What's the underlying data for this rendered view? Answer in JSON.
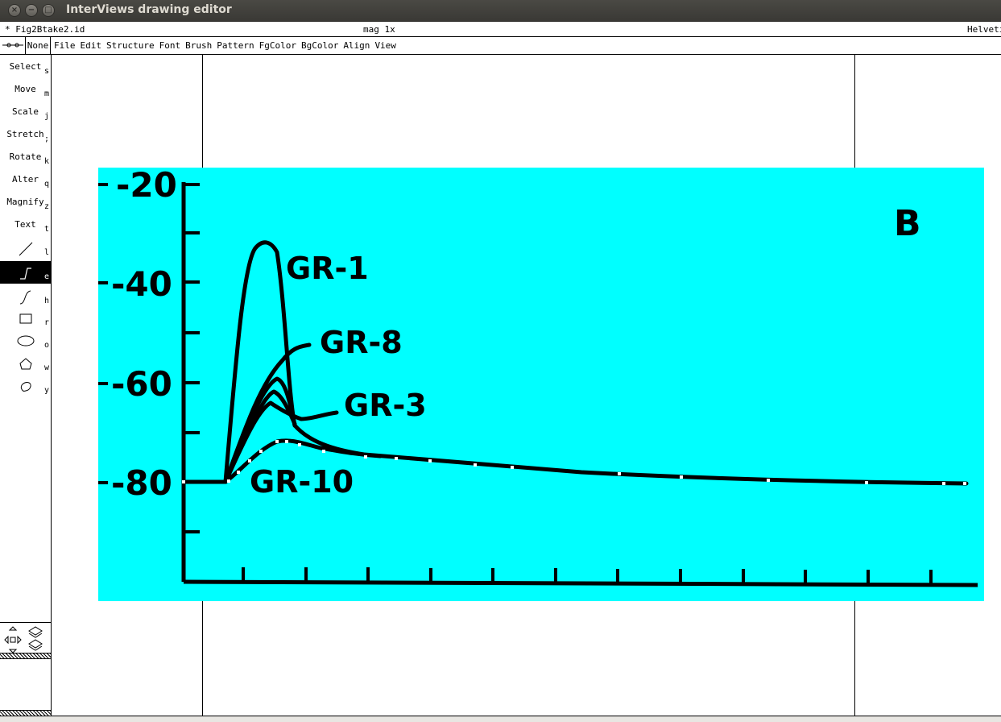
{
  "window": {
    "title": "InterViews drawing editor",
    "buttons": [
      "×",
      "−",
      "□"
    ]
  },
  "infobar": {
    "filename": "* Fig2Btake2.id",
    "magnification": "mag 1x",
    "font": "Helveti"
  },
  "menubar": {
    "pattern": "None",
    "menus": [
      "File",
      "Edit",
      "Structure",
      "Font",
      "Brush",
      "Pattern",
      "FgColor",
      "BgColor",
      "Align",
      "View"
    ]
  },
  "tools": [
    {
      "label": "Select",
      "key": "s"
    },
    {
      "label": "Move",
      "key": "m"
    },
    {
      "label": "Scale",
      "key": "j"
    },
    {
      "label": "Stretch",
      "key": ";"
    },
    {
      "label": "Rotate",
      "key": "k"
    },
    {
      "label": "Alter",
      "key": "q"
    },
    {
      "label": "Magnify",
      "key": "z"
    },
    {
      "label": "Text",
      "key": "t"
    },
    {
      "icon": "line-icon",
      "key": "l"
    },
    {
      "icon": "multiline-icon",
      "key": "e",
      "active": true
    },
    {
      "icon": "open-spline-icon",
      "key": "h"
    },
    {
      "icon": "rectangle-icon",
      "key": "r"
    },
    {
      "icon": "ellipse-icon",
      "key": "o"
    },
    {
      "icon": "polygon-icon",
      "key": "w"
    },
    {
      "icon": "closed-spline-icon",
      "key": "y"
    }
  ],
  "colors": {
    "figure_background": "#00ffff",
    "ink": "#000000",
    "active_tool": "#000000"
  },
  "figure": {
    "panel_letter": "B",
    "y_tick_labels": [
      "-20",
      "-40",
      "-60",
      "-80"
    ],
    "curve_labels": [
      "GR-1",
      "GR-8",
      "GR-3",
      "GR-10"
    ]
  }
}
